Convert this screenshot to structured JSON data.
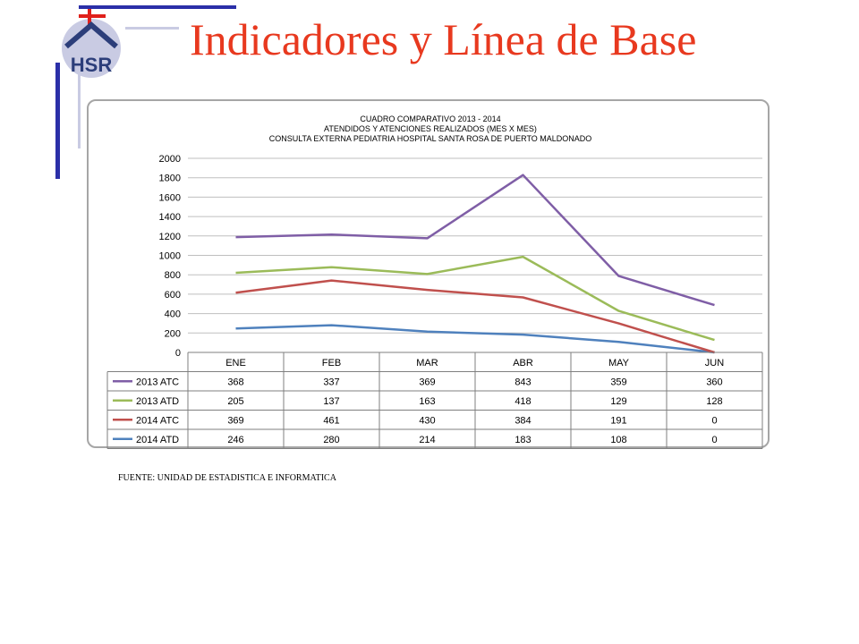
{
  "slide": {
    "title": "Indicadores y Línea de Base",
    "source": "FUENTE: UNIDAD DE ESTADISTICA E INFORMATICA",
    "title_color": "#e8391f"
  },
  "logo": {
    "text": "HSR",
    "cross_color": "#e0201b",
    "letter_color": "#2c3e7a",
    "circle_color": "#c9cbe3"
  },
  "colors": {
    "accent_bar": "#2b2fa8",
    "accent_light": "#c9cbe3"
  },
  "chart_data": {
    "type": "line",
    "title": [
      "CUADRO COMPARATIVO 2013 - 2014",
      "ATENDIDOS Y ATENCIONES  REALIZADOS (MES X MES)",
      "CONSULTA EXTERNA PEDIATRIA HOSPITAL SANTA ROSA DE PUERTO MALDONADO"
    ],
    "categories": [
      "ENE",
      "FEB",
      "MAR",
      "ABR",
      "MAY",
      "JUN"
    ],
    "ylim": [
      0,
      2000
    ],
    "yticks": [
      0,
      200,
      400,
      600,
      800,
      1000,
      1200,
      1400,
      1600,
      1800,
      2000
    ],
    "grid": true,
    "stacked": true,
    "legend_position": "data-table",
    "series": [
      {
        "name": "2013 ATC",
        "color": "#7f5ea6",
        "values": [
          368,
          337,
          369,
          843,
          359,
          360
        ]
      },
      {
        "name": "2013 ATD",
        "color": "#9bbb59",
        "values": [
          205,
          137,
          163,
          418,
          129,
          128
        ]
      },
      {
        "name": "2014 ATC",
        "color": "#c0504d",
        "values": [
          369,
          461,
          430,
          384,
          191,
          0
        ]
      },
      {
        "name": "2014 ATD",
        "color": "#4f81bd",
        "values": [
          246,
          280,
          214,
          183,
          108,
          0
        ]
      }
    ]
  }
}
